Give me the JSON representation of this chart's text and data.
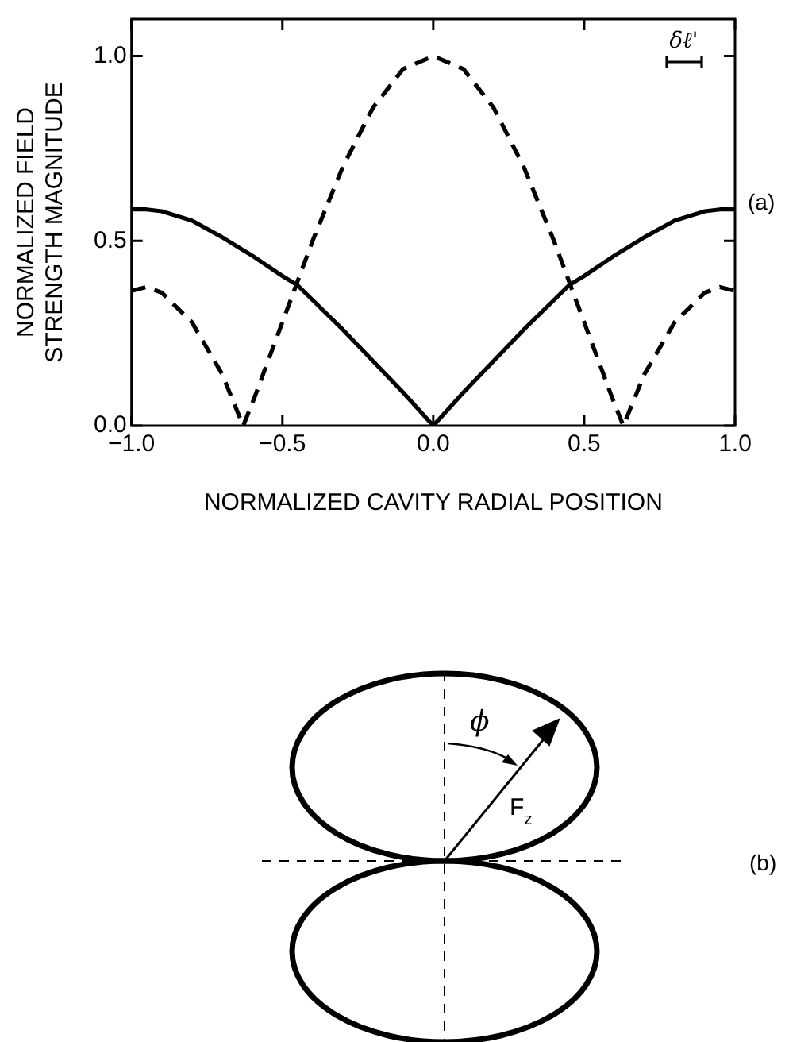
{
  "chart_data": {
    "type": "line",
    "xlabel": "NORMALIZED CAVITY RADIAL POSITION",
    "ylabel": "NORMALIZED FIELD STRENGTH MAGNITUDE",
    "annotations": [
      "(a)",
      "δℓ'",
      "(b)",
      "ϕ",
      "F$_{z}$"
    ],
    "xlim": [
      -1,
      1
    ],
    "xticks": [
      {
        "value": -1,
        "label": "−1.0"
      },
      {
        "value": -0.5,
        "label": "−0.5"
      },
      {
        "value": 0,
        "label": "0.0"
      },
      {
        "value": 0.5,
        "label": "0.5"
      },
      {
        "value": 1,
        "label": "1.0"
      }
    ],
    "ylim": [
      0,
      1.1
    ],
    "yticks": [
      {
        "value": 0,
        "label": "0.0"
      },
      {
        "value": 0.5,
        "label": "0.5"
      },
      {
        "value": 1,
        "label": "1.0"
      }
    ],
    "x": [
      -1,
      -0.95,
      -0.9,
      -0.8,
      -0.7,
      -0.63,
      -0.6,
      -0.5,
      -0.45,
      -0.4,
      -0.3,
      -0.2,
      -0.1,
      0,
      0.1,
      0.2,
      0.3,
      0.4,
      0.45,
      0.5,
      0.6,
      0.63,
      0.7,
      0.8,
      0.9,
      0.95,
      1
    ],
    "series": [
      {
        "color": "#000000",
        "line_style": "solid",
        "values": [
          0.585,
          0.585,
          0.58,
          0.555,
          0.51,
          0.475,
          0.46,
          0.405,
          0.38,
          0.34,
          0.26,
          0.175,
          0.09,
          0,
          0.09,
          0.175,
          0.26,
          0.34,
          0.38,
          0.405,
          0.46,
          0.475,
          0.51,
          0.555,
          0.58,
          0.585,
          0.585
        ]
      },
      {
        "color": "#000000",
        "line_style": "dashed",
        "values": [
          0.365,
          0.375,
          0.36,
          0.28,
          0.14,
          0,
          0.06,
          0.28,
          0.39,
          0.5,
          0.7,
          0.86,
          0.965,
          1,
          0.965,
          0.86,
          0.7,
          0.5,
          0.39,
          0.28,
          0.06,
          0,
          0.14,
          0.28,
          0.36,
          0.375,
          0.365
        ]
      }
    ],
    "grid": false,
    "legend": false,
    "marker": "none"
  }
}
